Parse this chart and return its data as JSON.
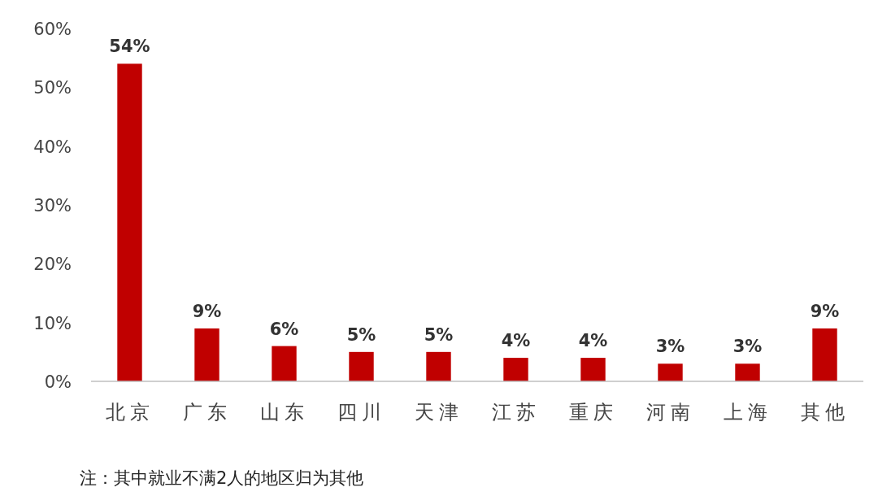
{
  "chart_data": {
    "type": "bar",
    "categories": [
      "北京",
      "广东",
      "山东",
      "四川",
      "天津",
      "江苏",
      "重庆",
      "河南",
      "上海",
      "其他"
    ],
    "values": [
      54,
      9,
      6,
      5,
      5,
      4,
      4,
      3,
      3,
      9
    ],
    "value_labels": [
      "54%",
      "9%",
      "6%",
      "5%",
      "5%",
      "4%",
      "4%",
      "3%",
      "3%",
      "9%"
    ],
    "color": "#c00000",
    "ylim": [
      0,
      60
    ],
    "yticks": [
      {
        "value": 0,
        "label": "0%"
      },
      {
        "value": 10,
        "label": "10%"
      },
      {
        "value": 20,
        "label": "20%"
      },
      {
        "value": 30,
        "label": "30%"
      },
      {
        "value": 40,
        "label": "40%"
      },
      {
        "value": 50,
        "label": "50%"
      },
      {
        "value": 60,
        "label": "60%"
      }
    ],
    "grid": false,
    "annotations": [
      "注：其中就业不满2人的地区归为其他"
    ]
  }
}
